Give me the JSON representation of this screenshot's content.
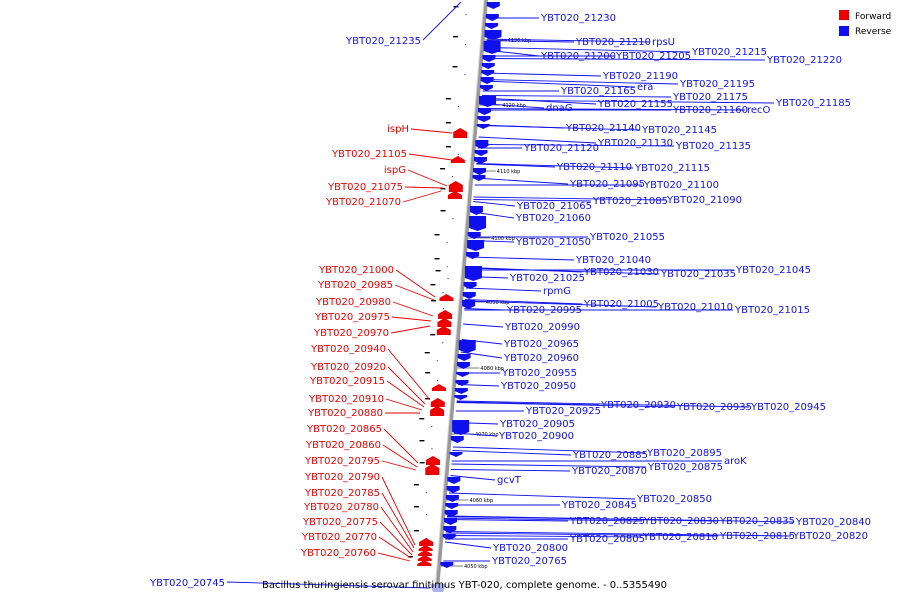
{
  "caption": "Bacillus thuringiensis serovar finitimus YBT-020, complete genome. - 0..5355490",
  "legend": {
    "placement": "top-right",
    "items": [
      {
        "label": "Forward",
        "color": "#ee0000"
      },
      {
        "label": "Reverse",
        "color": "#1010ee"
      }
    ]
  },
  "colors": {
    "forward": "#ee0000",
    "reverse": "#1010ee",
    "backbone": "#9a9a9a"
  },
  "ticks": [
    "4130 kbp",
    "4120 kbp",
    "4110 kbp",
    "4100 kbp",
    "4090 kbp",
    "4080 kbp",
    "4070 kbp",
    "4060 kbp",
    "4050 kbp"
  ],
  "forward_labels": [
    "ispH",
    "YBT020_21105",
    "ispG",
    "YBT020_21075",
    "YBT020_21070",
    "YBT020_21000",
    "YBT020_20985",
    "YBT020_20980",
    "YBT020_20975",
    "YBT020_20970",
    "YBT020_20940",
    "YBT020_20920",
    "YBT020_20915",
    "YBT020_20910",
    "YBT020_20880",
    "YBT020_20865",
    "YBT020_20860",
    "YBT020_20795",
    "YBT020_20790",
    "YBT020_20785",
    "YBT020_20780",
    "YBT020_20775",
    "YBT020_20770",
    "YBT020_20760"
  ],
  "reverse_left_labels": [
    "YBT020_21235",
    "YBT020_20745"
  ],
  "reverse_labels": [
    "YBT020_21230",
    "YBT020_21210",
    "rpsU",
    "YBT020_21215",
    "YBT020_21200",
    "YBT020_21205",
    "YBT020_21220",
    "YBT020_21190",
    "YBT020_21195",
    "era",
    "YBT020_21165",
    "YBT020_21175",
    "YBT020_21185",
    "dnaG",
    "YBT020_21155",
    "YBT020_21160",
    "recO",
    "YBT020_21140",
    "YBT020_21145",
    "YBT020_21130",
    "YBT020_21120",
    "YBT020_21135",
    "YBT020_21110",
    "YBT020_21115",
    "YBT020_21095",
    "YBT020_21100",
    "YBT020_21085",
    "YBT020_21090",
    "YBT020_21065",
    "YBT020_21060",
    "YBT020_21055",
    "YBT020_21050",
    "YBT020_21040",
    "YBT020_21030",
    "YBT020_21035",
    "YBT020_21045",
    "YBT020_21025",
    "rpmG",
    "YBT020_21005",
    "YBT020_21010",
    "YBT020_21015",
    "YBT020_20995",
    "YBT020_20990",
    "YBT020_20965",
    "YBT020_20960",
    "YBT020_20955",
    "YBT020_20950",
    "YBT020_20930",
    "YBT020_20935",
    "YBT020_20945",
    "YBT020_20925",
    "YBT020_20905",
    "YBT020_20900",
    "YBT020_20885",
    "YBT020_20895",
    "aroK",
    "YBT020_20870",
    "YBT020_20875",
    "gcvT",
    "YBT020_20850",
    "YBT020_20845",
    "YBT020_20825",
    "YBT020_20830",
    "YBT020_20835",
    "YBT020_20840",
    "YBT020_20805",
    "YBT020_20810",
    "YBT020_20815",
    "YBT020_20820",
    "YBT020_20800",
    "YBT020_20765"
  ]
}
